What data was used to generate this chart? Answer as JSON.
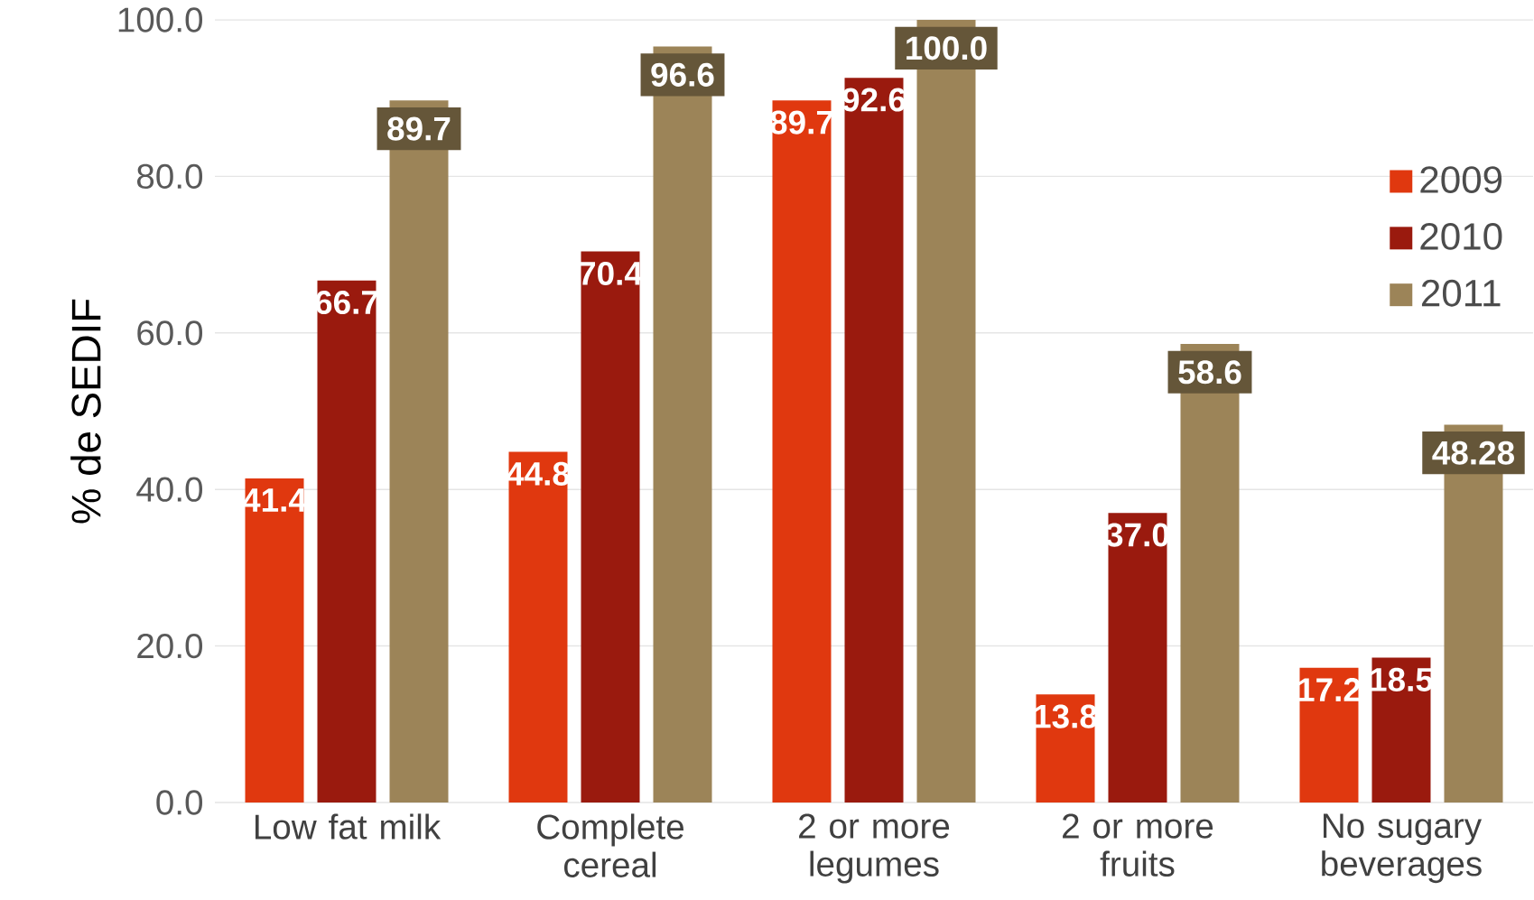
{
  "chart_data": {
    "type": "bar",
    "ylabel": "% de SEDIF",
    "categories": [
      "Low fat milk",
      "Complete cereal",
      "2 or more legumes",
      "2 or more fruits",
      "No sugary beverages"
    ],
    "series": [
      {
        "name": "2009",
        "color": "#e0380f",
        "values": [
          41.4,
          44.8,
          89.7,
          13.8,
          17.2
        ],
        "value_labels": [
          "41.4",
          "44.8",
          "89.7",
          "13.8",
          "17.2"
        ]
      },
      {
        "name": "2010",
        "color": "#9a1a0e",
        "values": [
          66.7,
          70.4,
          92.6,
          37.0,
          18.5
        ],
        "value_labels": [
          "66.7",
          "70.4",
          "92.6",
          "37.0",
          "18.5"
        ]
      },
      {
        "name": "2011",
        "color": "#9c8458",
        "values": [
          89.7,
          96.6,
          100.0,
          58.6,
          48.28
        ],
        "value_labels": [
          "89.7",
          "96.6",
          "100.0",
          "58.6",
          "48.28"
        ]
      }
    ],
    "ylim": [
      0,
      100
    ],
    "yticks": [
      {
        "value": 0,
        "label": "0.0"
      },
      {
        "value": 20,
        "label": "20.0"
      },
      {
        "value": 40,
        "label": "40.0"
      },
      {
        "value": 60,
        "label": "60.0"
      },
      {
        "value": 80,
        "label": "80.0"
      },
      {
        "value": 100,
        "label": "100.0"
      }
    ],
    "grid": "y",
    "legend": "right"
  }
}
